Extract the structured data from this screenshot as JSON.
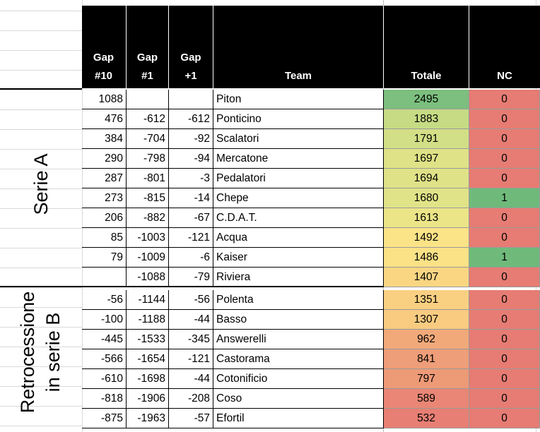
{
  "colors": {
    "header_bg": "#000000",
    "header_text": "#ffffff",
    "nc_zero": "#e67c73",
    "nc_one": "#6fba7b"
  },
  "headers": {
    "gap10_line1": "Gap",
    "gap10_line2": "#10",
    "gap1_line1": "Gap",
    "gap1_line2": "#1",
    "gapp1_line1": "Gap",
    "gapp1_line2": "+1",
    "team": "Team",
    "totale": "Totale",
    "nc": "NC"
  },
  "groups": {
    "serie_a": "Serie A",
    "retrocessione_line1": "Retrocessione",
    "retrocessione_line2": "in serie B"
  },
  "rows": [
    {
      "gap10": "1088",
      "gap1": "",
      "gapp1": "",
      "team": "Piton",
      "totale": "2495",
      "nc": "0",
      "tot_color": "#7cbf7e",
      "nc_color": "#e67c73"
    },
    {
      "gap10": "476",
      "gap1": "-612",
      "gapp1": "-612",
      "team": "Ponticino",
      "totale": "1883",
      "nc": "0",
      "tot_color": "#c6db84",
      "nc_color": "#e67c73"
    },
    {
      "gap10": "384",
      "gap1": "-704",
      "gapp1": "-92",
      "team": "Scalatori",
      "totale": "1791",
      "nc": "0",
      "tot_color": "#d3df86",
      "nc_color": "#e67c73"
    },
    {
      "gap10": "290",
      "gap1": "-798",
      "gapp1": "-94",
      "team": "Mercatone",
      "totale": "1697",
      "nc": "0",
      "tot_color": "#dfe286",
      "nc_color": "#e67c73"
    },
    {
      "gap10": "287",
      "gap1": "-801",
      "gapp1": "-3",
      "team": "Pedalatori",
      "totale": "1694",
      "nc": "0",
      "tot_color": "#dfe287",
      "nc_color": "#e67c73"
    },
    {
      "gap10": "273",
      "gap1": "-815",
      "gapp1": "-14",
      "team": "Chepe",
      "totale": "1680",
      "nc": "1",
      "tot_color": "#e1e388",
      "nc_color": "#6fba7b"
    },
    {
      "gap10": "206",
      "gap1": "-882",
      "gapp1": "-67",
      "team": "C.D.A.T.",
      "totale": "1613",
      "nc": "0",
      "tot_color": "#ebe588",
      "nc_color": "#e67c73"
    },
    {
      "gap10": "85",
      "gap1": "-1003",
      "gapp1": "-121",
      "team": "Acqua",
      "totale": "1492",
      "nc": "0",
      "tot_color": "#fbe387",
      "nc_color": "#e67c73"
    },
    {
      "gap10": "79",
      "gap1": "-1009",
      "gapp1": "-6",
      "team": "Kaiser",
      "totale": "1486",
      "nc": "1",
      "tot_color": "#fbe286",
      "nc_color": "#6fba7b"
    },
    {
      "gap10": "",
      "gap1": "-1088",
      "gapp1": "-79",
      "team": "Riviera",
      "totale": "1407",
      "nc": "0",
      "tot_color": "#fad683",
      "nc_color": "#e67c73"
    },
    {
      "gap10": "-56",
      "gap1": "-1144",
      "gapp1": "-56",
      "team": "Polenta",
      "totale": "1351",
      "nc": "0",
      "tot_color": "#f9d082",
      "nc_color": "#e67c73"
    },
    {
      "gap10": "-100",
      "gap1": "-1188",
      "gapp1": "-44",
      "team": "Basso",
      "totale": "1307",
      "nc": "0",
      "tot_color": "#f8cb81",
      "nc_color": "#e67c73"
    },
    {
      "gap10": "-445",
      "gap1": "-1533",
      "gapp1": "-345",
      "team": "Answerelli",
      "totale": "962",
      "nc": "0",
      "tot_color": "#f1a97a",
      "nc_color": "#e67c73"
    },
    {
      "gap10": "-566",
      "gap1": "-1654",
      "gapp1": "-121",
      "team": "Castorama",
      "totale": "841",
      "nc": "0",
      "tot_color": "#ee9e78",
      "nc_color": "#e67c73"
    },
    {
      "gap10": "-610",
      "gap1": "-1698",
      "gapp1": "-44",
      "team": "Cotonificio",
      "totale": "797",
      "nc": "0",
      "tot_color": "#ed9a77",
      "nc_color": "#e67c73"
    },
    {
      "gap10": "-818",
      "gap1": "-1906",
      "gapp1": "-208",
      "team": "Coso",
      "totale": "589",
      "nc": "0",
      "tot_color": "#e98675",
      "nc_color": "#e67c73"
    },
    {
      "gap10": "-875",
      "gap1": "-1963",
      "gapp1": "-57",
      "team": "Efortil",
      "totale": "532",
      "nc": "0",
      "tot_color": "#e87f74",
      "nc_color": "#e67c73"
    }
  ]
}
